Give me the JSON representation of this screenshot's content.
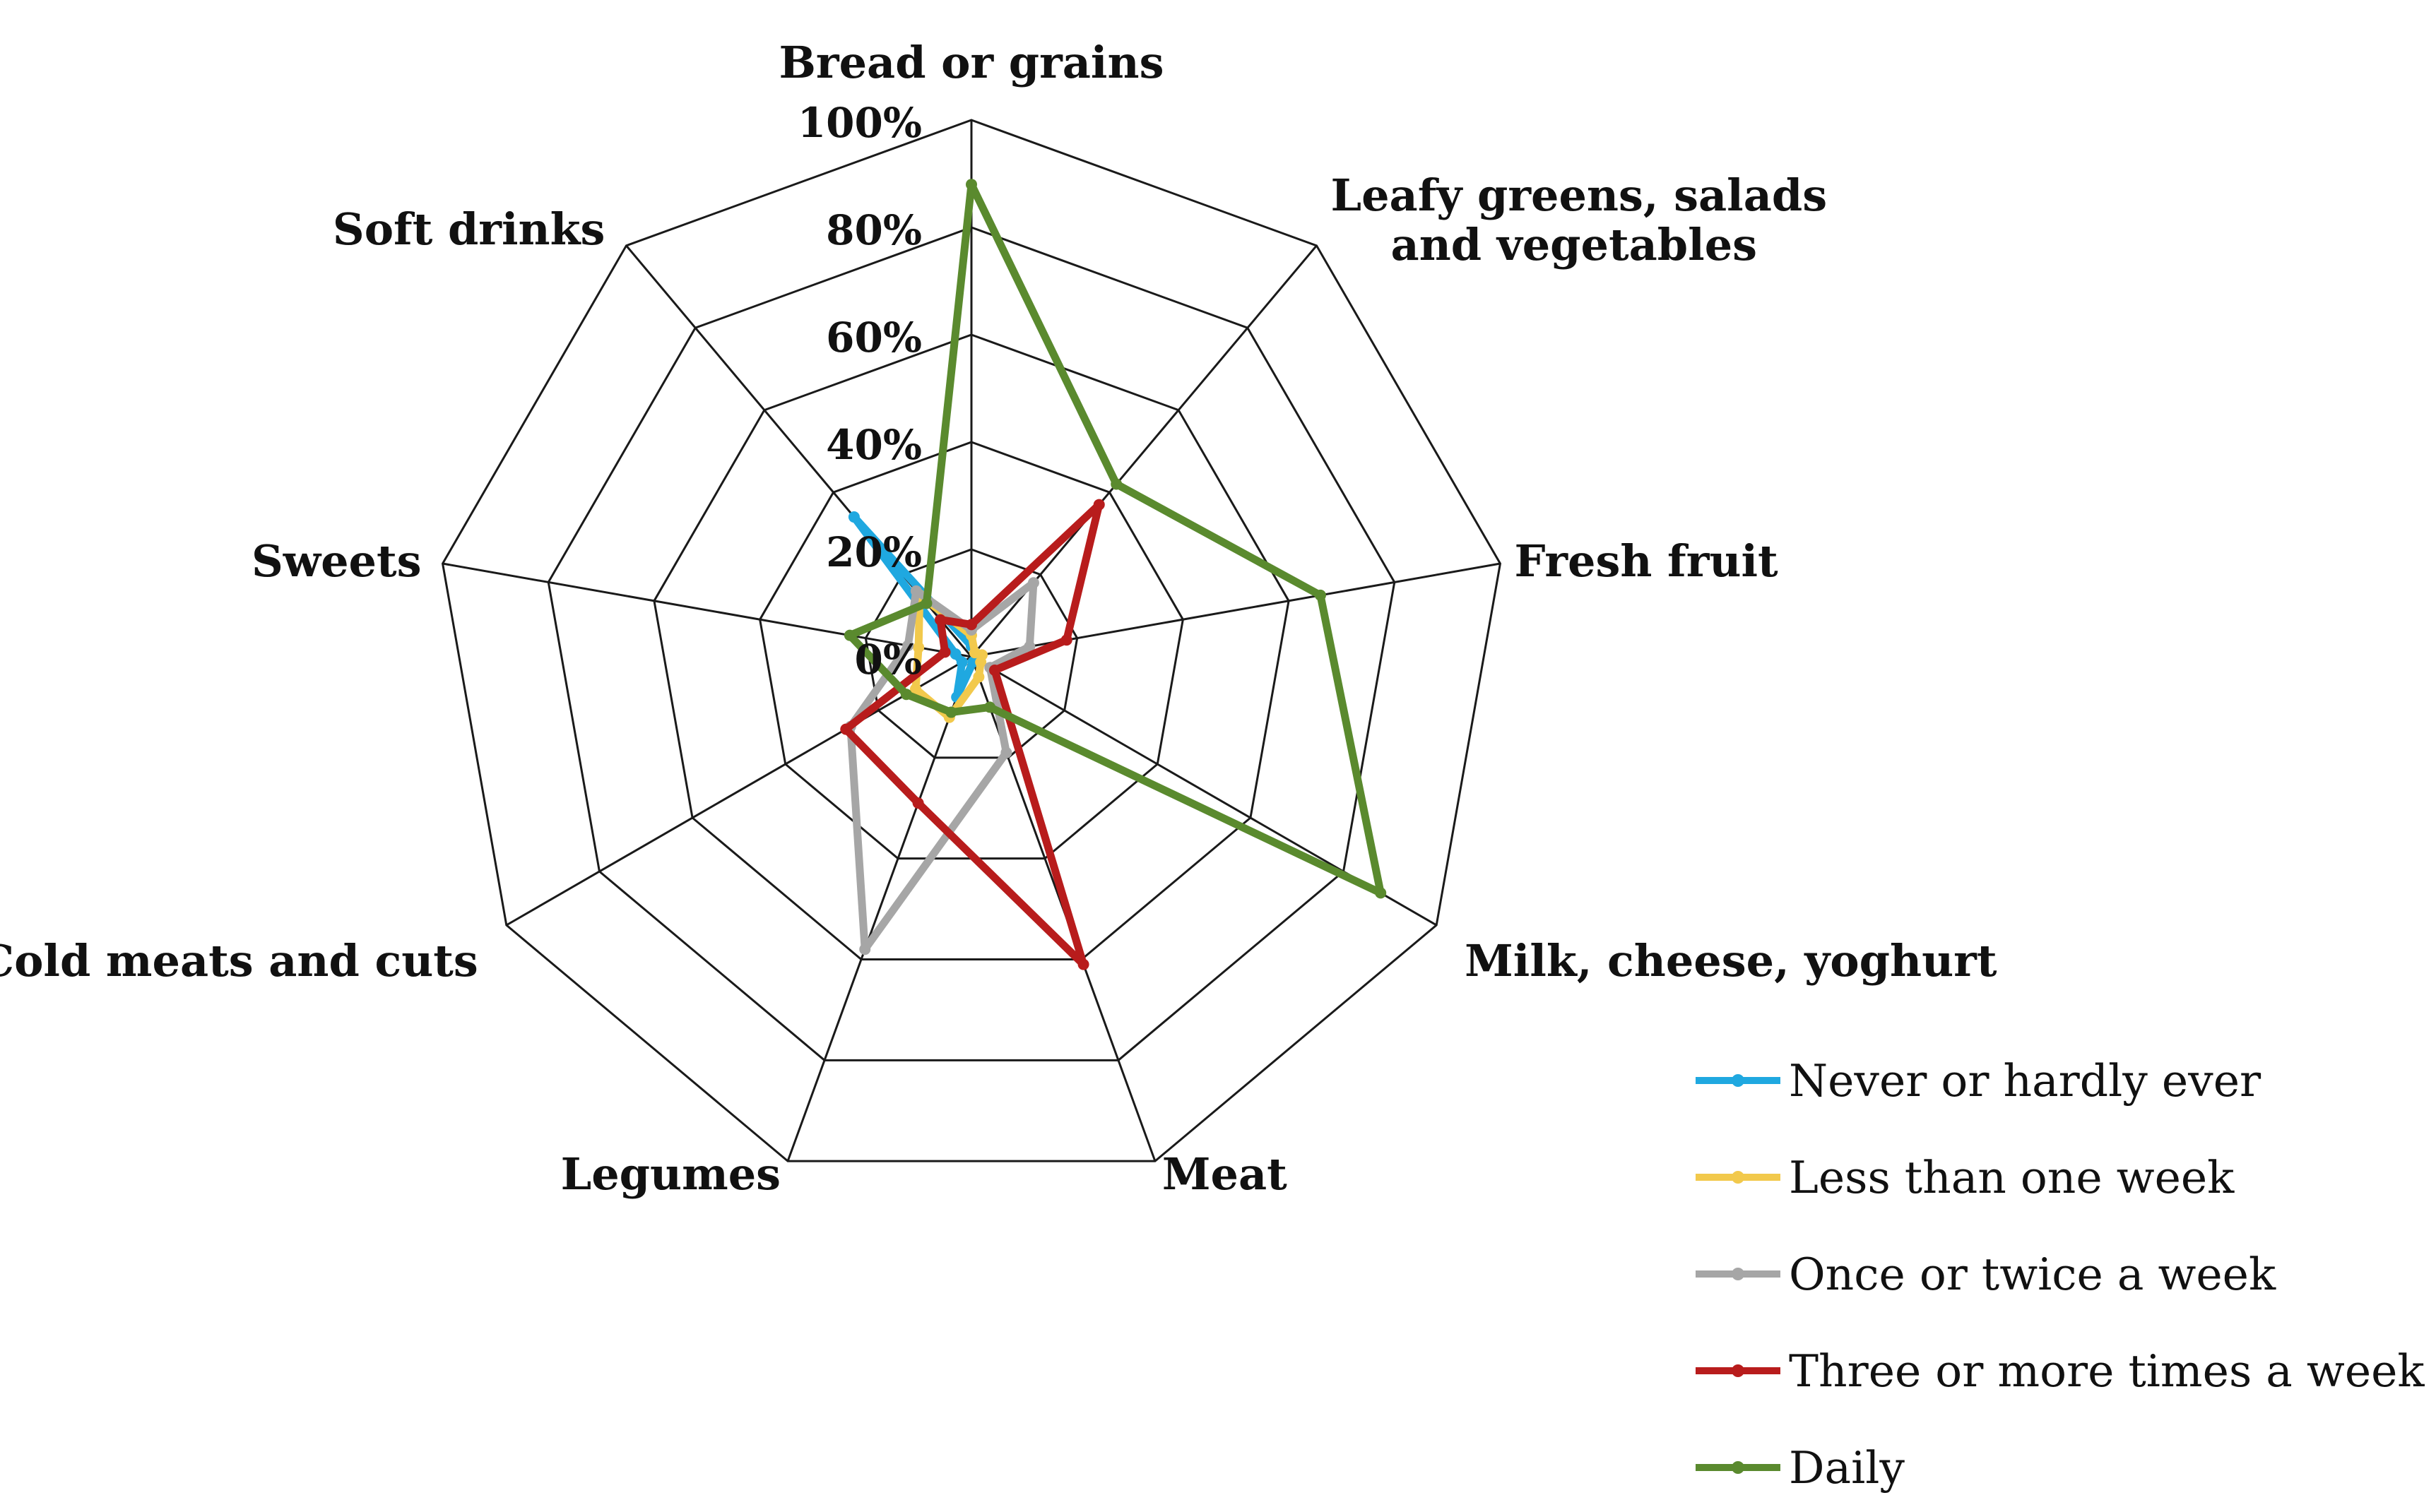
{
  "chart_data": {
    "type": "radar",
    "categories": [
      "Bread or grains",
      "Leafy greens, salads and vegetables",
      "Fresh fruit",
      "Milk, cheese, yoghurt",
      "Meat",
      "Legumes",
      "Cold meats and cuts",
      "Sweets",
      "Soft drinks"
    ],
    "category_label_lines": [
      [
        "Bread or grains"
      ],
      [
        "Leafy greens, salads",
        "and vegetables"
      ],
      [
        "Fresh fruit"
      ],
      [
        "Milk, cheese, yoghurt"
      ],
      [
        "Meat"
      ],
      [
        "Legumes"
      ],
      [
        "Cold meats and cuts"
      ],
      [
        "Sweets"
      ],
      [
        "Soft drinks"
      ]
    ],
    "ticks": [
      "0%",
      "20%",
      "40%",
      "60%",
      "80%",
      "100%"
    ],
    "rlim": [
      0,
      100
    ],
    "grid": true,
    "legend_position": "bottom-right",
    "series": [
      {
        "name": "Never or hardly ever",
        "color": "#1fa8e0",
        "values": [
          2,
          1,
          1,
          1,
          1,
          8,
          2,
          3,
          34
        ]
      },
      {
        "name": "Less than one week",
        "color": "#f2c94c",
        "values": [
          4,
          1,
          2,
          2,
          4,
          12,
          12,
          10,
          15
        ]
      },
      {
        "name": "Once or twice a week",
        "color": "#a6a6a6",
        "values": [
          5,
          18,
          11,
          4,
          19,
          58,
          26,
          12,
          16
        ]
      },
      {
        "name": "Three or more times a week",
        "color": "#b81c1c",
        "values": [
          6,
          37,
          18,
          5,
          61,
          29,
          27,
          5,
          9
        ]
      },
      {
        "name": "Daily",
        "color": "#5a8a2e",
        "values": [
          88,
          42,
          66,
          88,
          10,
          11,
          14,
          23,
          13
        ]
      }
    ]
  }
}
